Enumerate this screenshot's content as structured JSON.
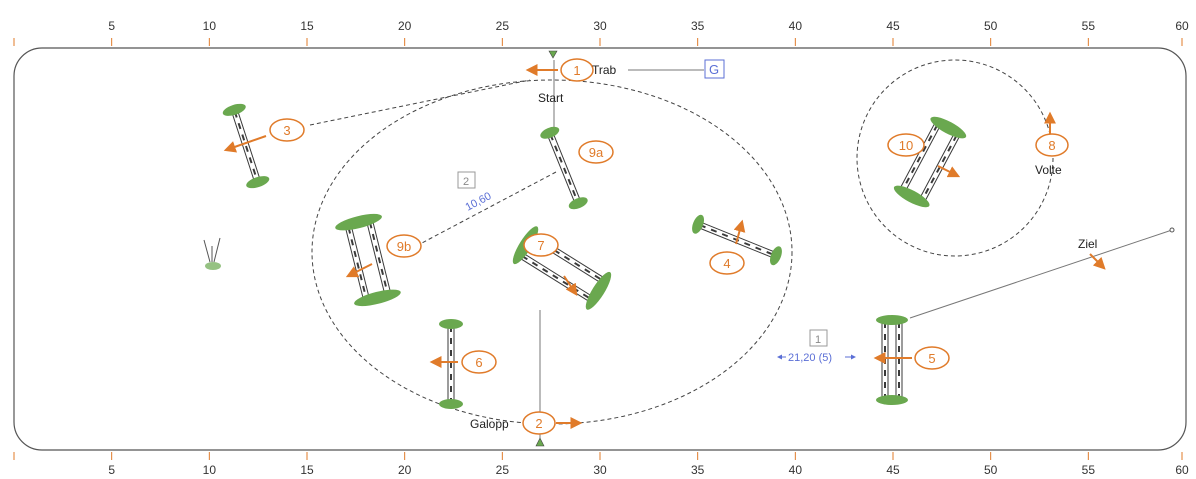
{
  "scale": {
    "top_ticks": [
      "5",
      "10",
      "15",
      "20",
      "25",
      "30",
      "35",
      "40",
      "45",
      "50",
      "55",
      "60"
    ],
    "bottom_ticks": [
      "5",
      "10",
      "15",
      "20",
      "25",
      "30",
      "35",
      "40",
      "45",
      "50",
      "55",
      "60"
    ]
  },
  "labels": {
    "trab": "Trab",
    "start": "Start",
    "galopp": "Galopp",
    "volte": "Volte",
    "ziel": "Ziel",
    "g_marker": "G",
    "distance_1_box": "1",
    "distance_1": "21,20 (5)",
    "distance_2_box": "2",
    "distance_2": "10,60"
  },
  "obstacles": [
    "1",
    "2",
    "3",
    "4",
    "5",
    "6",
    "7",
    "8",
    "9a",
    "9b",
    "10"
  ],
  "colors": {
    "arena_border": "#555555",
    "number_orange": "#e07b2a",
    "distance_blue": "#5b6fd6",
    "hedge_green": "#6aa84f",
    "pole": "#3a3a3a"
  }
}
